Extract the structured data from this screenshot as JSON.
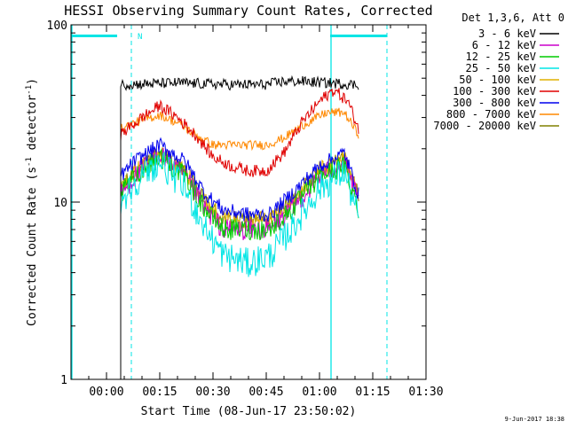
{
  "chart_data": {
    "type": "line",
    "title": "HESSI Observing Summary Count Rates, Corrected",
    "xlabel": "Start Time (08-Jun-17 23:50:02)",
    "ylabel_parts": [
      "Corrected Count Rate (s",
      "-1",
      " detector",
      "-1",
      ")"
    ],
    "y_scale": "log",
    "ylim": [
      1,
      100
    ],
    "xlim_minutes": [
      -10,
      90
    ],
    "x_ticks": [
      {
        "m": 0,
        "label": "00:00"
      },
      {
        "m": 15,
        "label": "00:15"
      },
      {
        "m": 30,
        "label": "00:30"
      },
      {
        "m": 45,
        "label": "00:45"
      },
      {
        "m": 60,
        "label": "01:00"
      },
      {
        "m": 75,
        "label": "01:15"
      },
      {
        "m": 90,
        "label": "01:30"
      }
    ],
    "y_ticks": [
      {
        "v": 1,
        "label": "1"
      },
      {
        "v": 10,
        "label": "10"
      },
      {
        "v": 100,
        "label": "100"
      }
    ],
    "legend_title": "Det 1,3,6, Att 0",
    "legend_placement": "right",
    "data_start_minute": 4,
    "data_end_minute": 71,
    "series": [
      {
        "name": "3 - 6 keV",
        "color": "#000000",
        "keypoints": [
          [
            4,
            46
          ],
          [
            20,
            47
          ],
          [
            35,
            46
          ],
          [
            45,
            46
          ],
          [
            50,
            48
          ],
          [
            55,
            48
          ],
          [
            70,
            46
          ]
        ],
        "noise": 0.07
      },
      {
        "name": "6 - 12 keV",
        "color": "#cc00cc",
        "keypoints": [
          [
            4,
            11
          ],
          [
            8,
            14
          ],
          [
            15,
            19
          ],
          [
            22,
            14
          ],
          [
            28,
            9
          ],
          [
            33,
            7
          ],
          [
            40,
            7
          ],
          [
            46,
            7
          ],
          [
            52,
            9
          ],
          [
            60,
            14
          ],
          [
            67,
            17
          ],
          [
            71,
            10
          ]
        ],
        "noise": 0.14
      },
      {
        "name": "12 - 25 keV",
        "color": "#00cc00",
        "keypoints": [
          [
            4,
            11
          ],
          [
            8,
            14
          ],
          [
            15,
            18
          ],
          [
            22,
            14
          ],
          [
            28,
            9
          ],
          [
            33,
            7
          ],
          [
            40,
            7
          ],
          [
            46,
            7
          ],
          [
            52,
            9
          ],
          [
            60,
            14
          ],
          [
            67,
            16
          ],
          [
            71,
            9
          ]
        ],
        "noise": 0.14
      },
      {
        "name": "25 - 50 keV",
        "color": "#00e5e5",
        "keypoints": [
          [
            4,
            10
          ],
          [
            8,
            13
          ],
          [
            15,
            17
          ],
          [
            22,
            12
          ],
          [
            28,
            7
          ],
          [
            33,
            5
          ],
          [
            40,
            4.5
          ],
          [
            46,
            5
          ],
          [
            52,
            7
          ],
          [
            60,
            12
          ],
          [
            67,
            15
          ],
          [
            71,
            8
          ]
        ],
        "noise": 0.2
      },
      {
        "name": "50 - 100 keV",
        "color": "#e0b000",
        "keypoints": [
          [
            4,
            12
          ],
          [
            8,
            15
          ],
          [
            15,
            19
          ],
          [
            22,
            15
          ],
          [
            28,
            10
          ],
          [
            33,
            8
          ],
          [
            40,
            8
          ],
          [
            46,
            8
          ],
          [
            52,
            10
          ],
          [
            60,
            15
          ],
          [
            67,
            18
          ],
          [
            71,
            11
          ]
        ],
        "noise": 0.12
      },
      {
        "name": "100 - 300 keV",
        "color": "#e00000",
        "keypoints": [
          [
            4,
            24
          ],
          [
            10,
            30
          ],
          [
            15,
            35
          ],
          [
            20,
            30
          ],
          [
            25,
            24
          ],
          [
            30,
            18
          ],
          [
            35,
            16
          ],
          [
            40,
            15
          ],
          [
            45,
            15
          ],
          [
            50,
            19
          ],
          [
            55,
            28
          ],
          [
            60,
            37
          ],
          [
            64,
            43
          ],
          [
            68,
            37
          ],
          [
            71,
            26
          ]
        ],
        "noise": 0.08
      },
      {
        "name": "300 - 800 keV",
        "color": "#0000ee",
        "keypoints": [
          [
            4,
            14
          ],
          [
            8,
            17
          ],
          [
            15,
            21
          ],
          [
            22,
            17
          ],
          [
            28,
            11
          ],
          [
            33,
            9
          ],
          [
            40,
            8.5
          ],
          [
            46,
            8.5
          ],
          [
            52,
            11
          ],
          [
            60,
            16
          ],
          [
            67,
            19
          ],
          [
            71,
            11
          ]
        ],
        "noise": 0.1
      },
      {
        "name": "800 - 7000 keV",
        "color": "#ff8800",
        "keypoints": [
          [
            4,
            26
          ],
          [
            10,
            29
          ],
          [
            15,
            31
          ],
          [
            20,
            28
          ],
          [
            25,
            24
          ],
          [
            30,
            21
          ],
          [
            40,
            21
          ],
          [
            45,
            21
          ],
          [
            50,
            23
          ],
          [
            55,
            27
          ],
          [
            62,
            32
          ],
          [
            67,
            32
          ],
          [
            71,
            24
          ]
        ],
        "noise": 0.06
      },
      {
        "name": "7000 - 20000 keV",
        "color": "#808000",
        "keypoints": [
          [
            4,
            12
          ],
          [
            8,
            15
          ],
          [
            15,
            19
          ],
          [
            22,
            15
          ],
          [
            28,
            10
          ],
          [
            33,
            8
          ],
          [
            40,
            8
          ],
          [
            46,
            8
          ],
          [
            52,
            10
          ],
          [
            60,
            15
          ],
          [
            67,
            18
          ],
          [
            71,
            11
          ]
        ],
        "noise": 0.1
      }
    ],
    "orbit_markers": {
      "color": "#00e5e5",
      "night_bars": [
        [
          -10,
          3
        ],
        [
          63,
          79
        ]
      ],
      "solid_lines": [
        -10,
        63
      ],
      "dashed_lines": [
        7,
        79
      ],
      "labels": [
        {
          "m": 8,
          "text": "N"
        }
      ]
    }
  },
  "footer": {
    "timestamp": "9-Jun-2017 18:38"
  }
}
